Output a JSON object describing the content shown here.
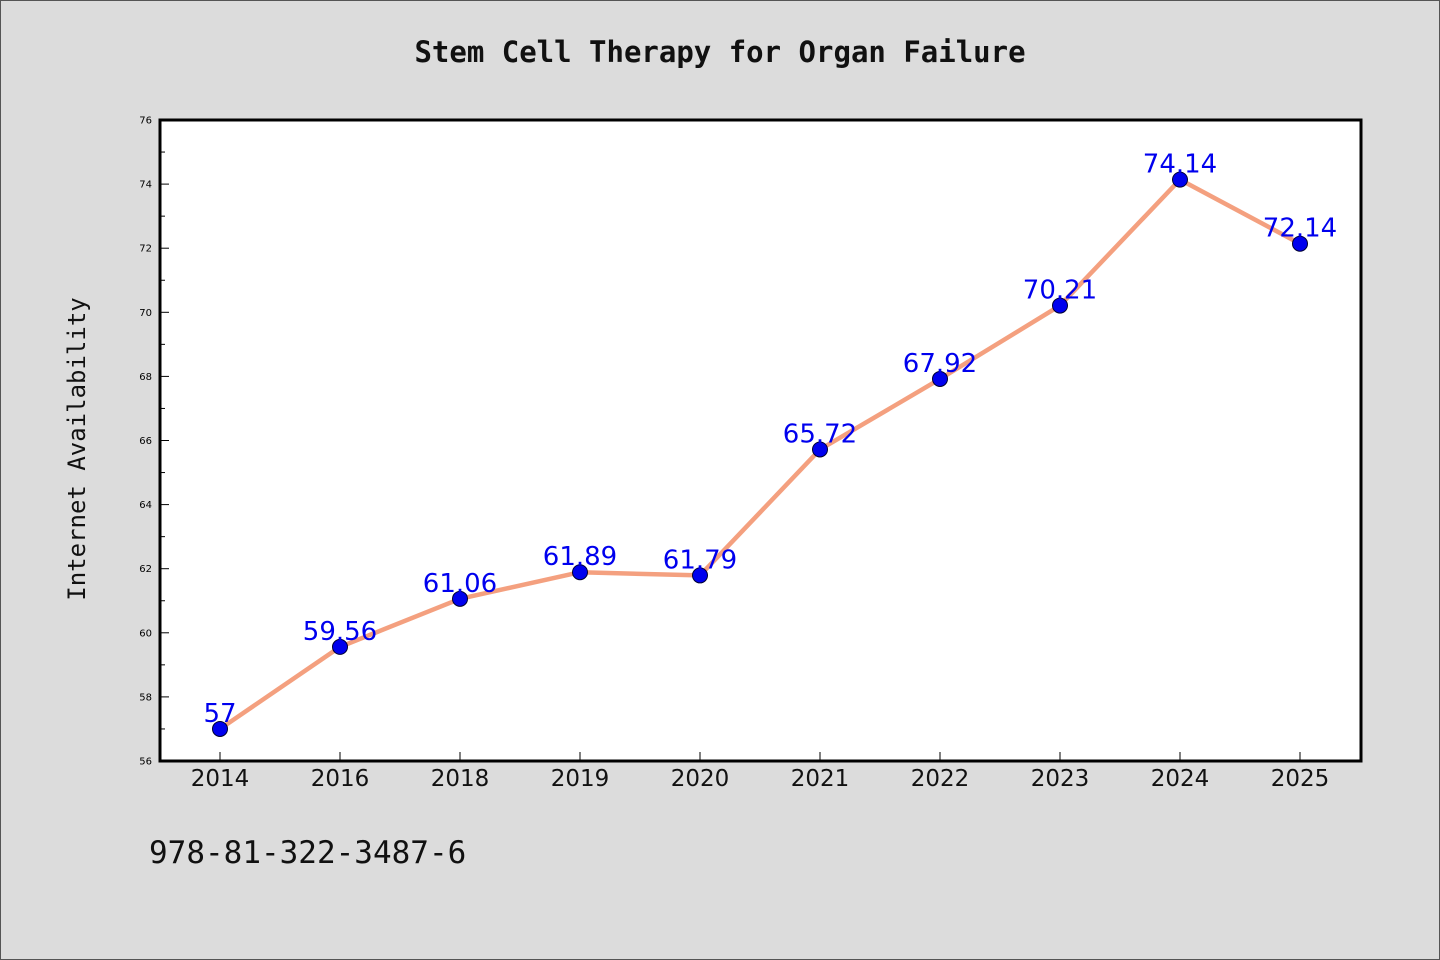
{
  "chart_data": {
    "type": "line",
    "title": "Stem Cell Therapy for Organ Failure",
    "xlabel": "",
    "ylabel": "Internet Availability",
    "categories": [
      "2014",
      "2016",
      "2018",
      "2019",
      "2020",
      "2021",
      "2022",
      "2023",
      "2024",
      "2025"
    ],
    "series": [
      {
        "values": [
          57,
          59.56,
          61.06,
          61.89,
          61.79,
          65.72,
          67.92,
          70.21,
          74.14,
          72.14
        ],
        "data_labels": [
          "57",
          "59.56",
          "61.06",
          "61.89",
          "61.79",
          "65.72",
          "67.92",
          "70.21",
          "74.14",
          "72.14"
        ],
        "line_color": "#f4a07f",
        "marker_color": "#0000ee"
      }
    ],
    "ylim": [
      56,
      76
    ],
    "yticks": [
      56,
      58,
      60,
      62,
      64,
      66,
      68,
      70,
      72,
      74,
      76
    ],
    "grid": false,
    "legend": "none",
    "label_color": "#0000ee"
  },
  "footer": {
    "code": "978-81-322-3487-6"
  }
}
